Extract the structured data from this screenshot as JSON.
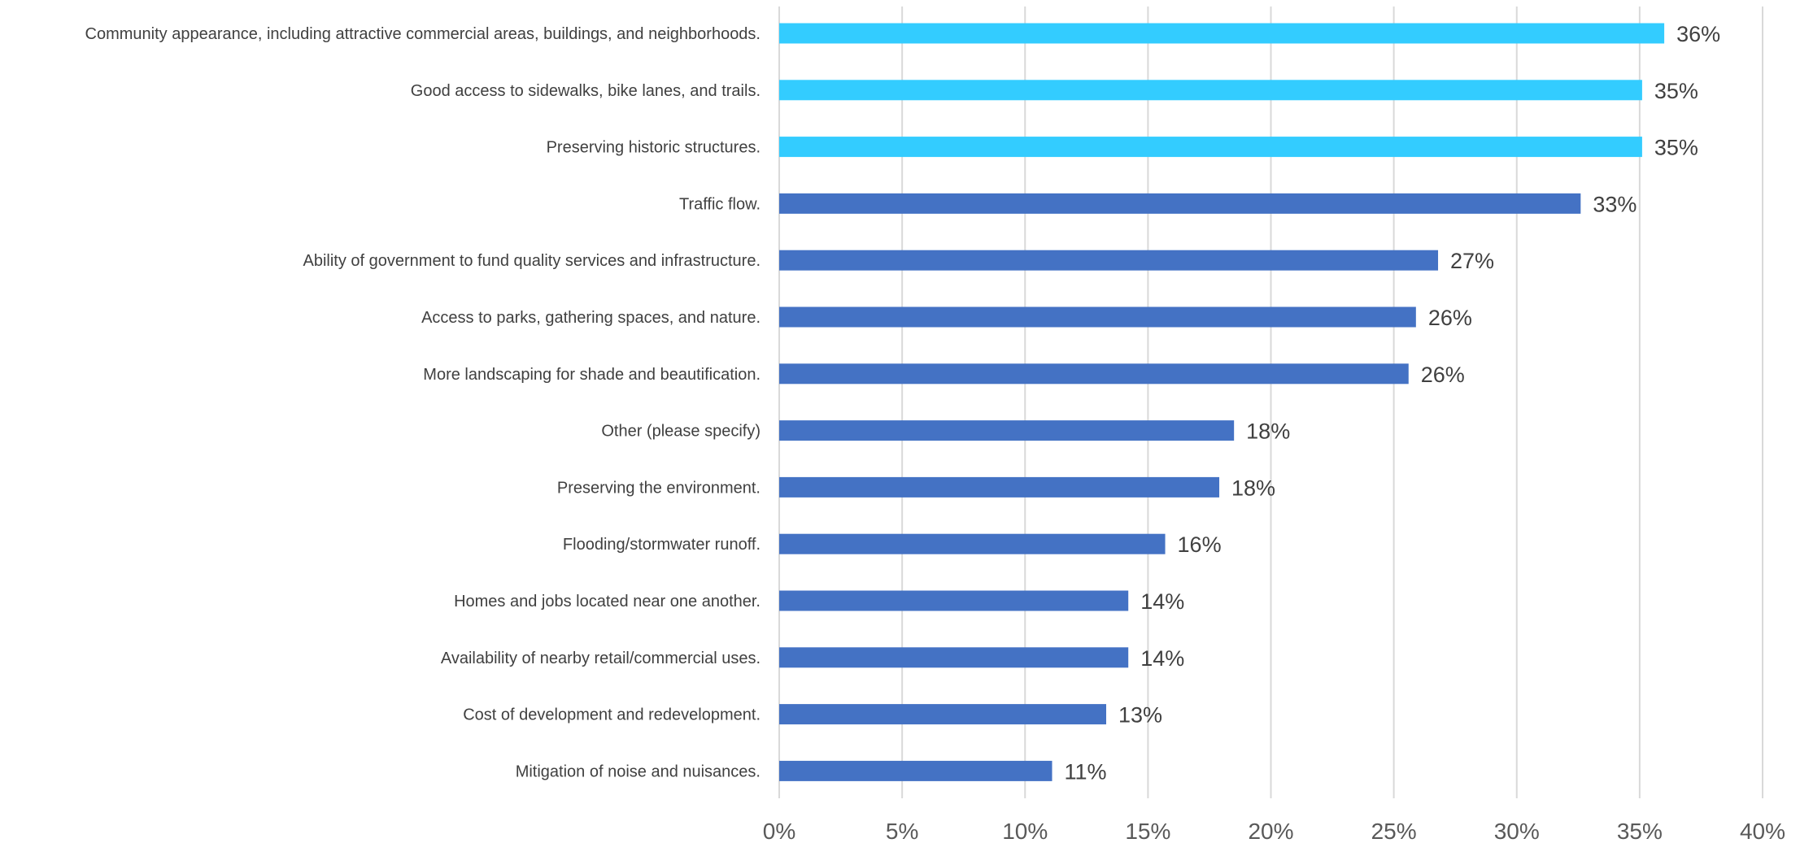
{
  "chart_data": {
    "type": "bar",
    "orientation": "horizontal",
    "categories": [
      "Community appearance, including attractive commercial areas, buildings, and neighborhoods.",
      "Good access to sidewalks, bike lanes, and trails.",
      "Preserving historic structures.",
      "Traffic flow.",
      "Ability of government to fund quality services and infrastructure.",
      "Access to parks, gathering spaces, and nature.",
      "More landscaping for shade and beautification.",
      "Other (please specify)",
      "Preserving the environment.",
      "Flooding/stormwater runoff.",
      "Homes and jobs located near one another.",
      "Availability of nearby retail/commercial uses.",
      "Cost of development and redevelopment.",
      "Mitigation of noise and nuisances."
    ],
    "values": [
      36.0,
      35.1,
      35.1,
      32.6,
      26.8,
      25.9,
      25.6,
      18.5,
      17.9,
      15.7,
      14.2,
      14.2,
      13.3,
      11.1
    ],
    "data_labels": [
      "36%",
      "35%",
      "35%",
      "33%",
      "27%",
      "26%",
      "26%",
      "18%",
      "18%",
      "16%",
      "14%",
      "14%",
      "13%",
      "11%"
    ],
    "bar_colors": [
      "#33ccff",
      "#33ccff",
      "#33ccff",
      "#4472c4",
      "#4472c4",
      "#4472c4",
      "#4472c4",
      "#4472c4",
      "#4472c4",
      "#4472c4",
      "#4472c4",
      "#4472c4",
      "#4472c4",
      "#4472c4"
    ],
    "xlim": [
      0,
      40
    ],
    "xticks": [
      0,
      5,
      10,
      15,
      20,
      25,
      30,
      35,
      40
    ],
    "xtick_labels": [
      "0%",
      "5%",
      "10%",
      "15%",
      "20%",
      "25%",
      "30%",
      "35%",
      "40%"
    ],
    "title": "",
    "xlabel": "",
    "ylabel": "",
    "grid": "vertical",
    "legend": "none"
  }
}
